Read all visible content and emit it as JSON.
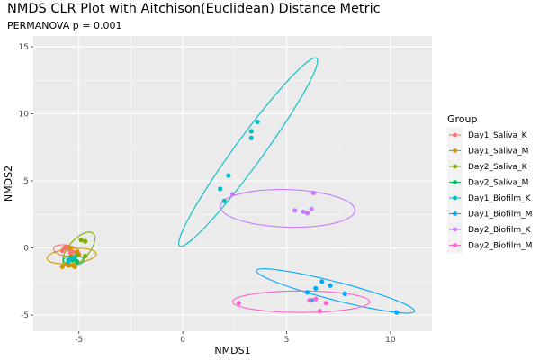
{
  "chart_data": {
    "type": "scatter",
    "title": "NMDS CLR Plot with Aitchison(Euclidean) Distance Metric",
    "subtitle": "PERMANOVA p = 0.001",
    "xlabel": "NMDS1",
    "ylabel": "NMDS2",
    "xlim": [
      -7.2,
      12.0
    ],
    "ylim": [
      -6.2,
      15.8
    ],
    "x_ticks": [
      -5,
      0,
      5,
      10
    ],
    "y_ticks": [
      -5,
      0,
      5,
      10,
      15
    ],
    "grid": true,
    "legend": {
      "title": "Group",
      "position": "right"
    },
    "series": [
      {
        "name": "Day1_Saliva_K",
        "color": "#F8766D",
        "points": [
          [
            -5.8,
            -0.2
          ],
          [
            -5.6,
            0.1
          ],
          [
            -5.5,
            -0.1
          ],
          [
            -5.3,
            -0.3
          ],
          [
            -5.4,
            -0.4
          ],
          [
            -5.7,
            0.0
          ]
        ],
        "ellipse": {
          "center": [
            -5.6,
            -0.2
          ],
          "axes": [
            0.65,
            0.4
          ],
          "angle_deg": -20
        }
      },
      {
        "name": "Day1_Saliva_M",
        "color": "#CD9600",
        "points": [
          [
            -5.8,
            -1.4
          ],
          [
            -5.5,
            -1.3
          ],
          [
            -5.3,
            -1.3
          ],
          [
            -5.6,
            -1.2
          ],
          [
            -5.2,
            -1.4
          ],
          [
            -5.0,
            -0.5
          ],
          [
            -5.4,
            0.0
          ],
          [
            -5.1,
            -0.3
          ]
        ],
        "ellipse": {
          "center": [
            -5.35,
            -0.6
          ],
          "axes": [
            1.2,
            0.55
          ],
          "angle_deg": 10
        }
      },
      {
        "name": "Day2_Saliva_K",
        "color": "#7CAE00",
        "points": [
          [
            -4.9,
            0.6
          ],
          [
            -4.7,
            0.5
          ],
          [
            -4.7,
            -0.6
          ],
          [
            -5.1,
            -0.5
          ],
          [
            -5.4,
            -0.7
          ]
        ],
        "ellipse": {
          "center": [
            -5.0,
            -0.1
          ],
          "axes": [
            1.4,
            0.55
          ],
          "angle_deg": 65
        }
      },
      {
        "name": "Day2_Saliva_M",
        "color": "#00BE67",
        "points": [
          [
            -5.3,
            -0.9
          ],
          [
            -5.2,
            -0.7
          ],
          [
            -5.5,
            -0.9
          ],
          [
            -5.1,
            -1.0
          ]
        ],
        "ellipse": {
          "center": [
            -5.25,
            -0.9
          ],
          "axes": [
            0.5,
            0.35
          ],
          "angle_deg": 0
        }
      },
      {
        "name": "Day1_Biofilm_K",
        "color": "#00BFC4",
        "points": [
          [
            3.6,
            9.4
          ],
          [
            3.3,
            8.7
          ],
          [
            3.3,
            8.2
          ],
          [
            2.2,
            5.4
          ],
          [
            1.8,
            4.4
          ],
          [
            2.0,
            3.5
          ],
          [
            -5.4,
            -0.8
          ],
          [
            -5.2,
            -0.7
          ],
          [
            -5.5,
            -1.0
          ]
        ],
        "ellipse": {
          "center": [
            3.15,
            7.15
          ],
          "axes": [
            7.75,
            0.75
          ],
          "angle_deg": 65
        }
      },
      {
        "name": "Day1_Biofilm_M",
        "color": "#00A9FF",
        "points": [
          [
            6.7,
            -2.5
          ],
          [
            7.1,
            -2.8
          ],
          [
            6.4,
            -3.0
          ],
          [
            6.0,
            -3.3
          ],
          [
            7.8,
            -3.4
          ],
          [
            6.2,
            -3.9
          ],
          [
            10.3,
            -4.8
          ]
        ],
        "ellipse": {
          "center": [
            7.35,
            -3.2
          ],
          "axes": [
            4.1,
            0.65
          ],
          "angle_deg": -22
        }
      },
      {
        "name": "Day2_Biofilm_K",
        "color": "#C77CFF",
        "points": [
          [
            6.3,
            4.1
          ],
          [
            2.4,
            4.0
          ],
          [
            5.4,
            2.8
          ],
          [
            5.8,
            2.7
          ],
          [
            6.0,
            2.6
          ],
          [
            6.2,
            2.9
          ]
        ],
        "ellipse": {
          "center": [
            5.05,
            2.95
          ],
          "axes": [
            3.25,
            1.4
          ],
          "angle_deg": -3
        }
      },
      {
        "name": "Day2_Biofilm_M",
        "color": "#FF61CC",
        "points": [
          [
            2.7,
            -4.1
          ],
          [
            6.1,
            -3.9
          ],
          [
            6.4,
            -3.8
          ],
          [
            6.9,
            -4.1
          ],
          [
            6.6,
            -4.7
          ]
        ],
        "ellipse": {
          "center": [
            5.7,
            -4.0
          ],
          "axes": [
            3.3,
            0.8
          ],
          "angle_deg": 0
        }
      }
    ]
  }
}
